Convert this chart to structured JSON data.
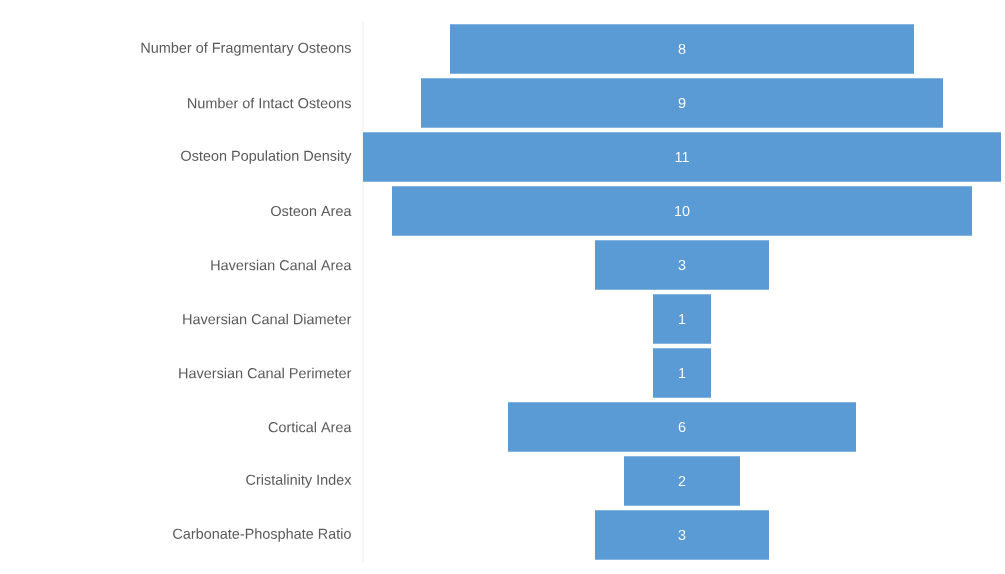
{
  "chart_data": {
    "type": "other",
    "categories": [
      "Number of Fragmentary Osteons",
      "Number of Intact Osteons",
      "Osteon Population Density",
      "Osteon Area",
      "Haversian Canal Area",
      "Haversian Canal Diameter",
      "Haversian Canal Perimeter",
      "Cortical Area",
      "Cristalinity Index",
      "Carbonate-Phosphate Ratio"
    ],
    "values": [
      8,
      9,
      11,
      10,
      3,
      1,
      1,
      6,
      2,
      3
    ],
    "color": "#5b9bd5",
    "data_labels": true
  }
}
